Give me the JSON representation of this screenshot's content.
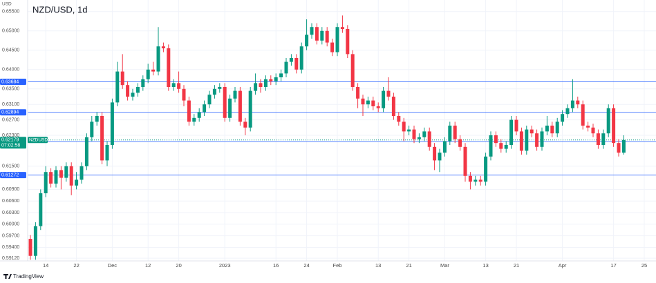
{
  "chart_data": {
    "type": "candlestick",
    "title": "NZD/USD, 1d",
    "y_axis_label": "USD",
    "symbol": "NZDUSD",
    "countdown": "07:02:58",
    "source": "TradingView",
    "grid": true,
    "up_color": "#089981",
    "down_color": "#f23645",
    "ylim": [
      0.5905,
      0.658
    ],
    "yticks": [
      {
        "value": 0.655,
        "label": "0.65500"
      },
      {
        "value": 0.65,
        "label": "0.65000"
      },
      {
        "value": 0.645,
        "label": "0.64500"
      },
      {
        "value": 0.64,
        "label": "0.64000"
      },
      {
        "value": 0.635,
        "label": "0.63500"
      },
      {
        "value": 0.631,
        "label": "0.63100"
      },
      {
        "value": 0.627,
        "label": "0.62700"
      },
      {
        "value": 0.623,
        "label": "0.62300"
      },
      {
        "value": 0.615,
        "label": "0.61500"
      },
      {
        "value": 0.609,
        "label": "0.60900"
      },
      {
        "value": 0.606,
        "label": "0.60600"
      },
      {
        "value": 0.603,
        "label": "0.60300"
      },
      {
        "value": 0.6,
        "label": "0.60000"
      },
      {
        "value": 0.597,
        "label": "0.59700"
      },
      {
        "value": 0.594,
        "label": "0.59400"
      },
      {
        "value": 0.5912,
        "label": "0.59120"
      }
    ],
    "price_lines": [
      {
        "value": 0.63684,
        "color": "#2962ff"
      },
      {
        "value": 0.62894,
        "color": "#2962ff"
      },
      {
        "value": 0.62133,
        "color": "#2962ff"
      },
      {
        "value": 0.61272,
        "color": "#2962ff"
      }
    ],
    "categories": [
      null,
      null,
      null,
      "14",
      null,
      null,
      null,
      null,
      null,
      "22",
      null,
      null,
      null,
      null,
      null,
      null,
      "Dec",
      null,
      null,
      null,
      null,
      null,
      null,
      "12",
      null,
      null,
      null,
      null,
      null,
      "20",
      null,
      null,
      null,
      null,
      null,
      null,
      null,
      null,
      "2023",
      null,
      null,
      null,
      null,
      null,
      null,
      null,
      null,
      null,
      "16",
      null,
      null,
      null,
      null,
      null,
      "24",
      null,
      null,
      null,
      null,
      null,
      "Feb",
      null,
      null,
      null,
      null,
      null,
      null,
      null,
      "13",
      null,
      null,
      null,
      null,
      null,
      "21",
      null,
      null,
      null,
      null,
      null,
      null,
      "Mar",
      null,
      null,
      null,
      null,
      null,
      null,
      null,
      "13",
      null,
      null,
      null,
      null,
      null,
      "21",
      null,
      null,
      null,
      null,
      null,
      null,
      null,
      null,
      "Apr",
      null,
      null,
      null,
      null,
      null,
      null,
      null,
      null,
      null,
      "17",
      null,
      null,
      null,
      null,
      null,
      "25"
    ],
    "open": [
      0.5962,
      0.5918,
      0.5995,
      0.608,
      0.6135,
      0.6105,
      0.614,
      0.612,
      0.615,
      0.61,
      0.6115,
      0.615,
      0.6225,
      0.6265,
      0.628,
      0.6165,
      0.6205,
      0.6315,
      0.6395,
      0.636,
      0.633,
      0.634,
      0.6355,
      0.6375,
      0.64,
      0.6395,
      0.646,
      0.6455,
      0.6355,
      0.6365,
      0.635,
      0.632,
      0.6265,
      0.6275,
      0.629,
      0.631,
      0.6335,
      0.635,
      0.6355,
      0.6275,
      0.6325,
      0.6345,
      0.6265,
      0.625,
      0.6345,
      0.6365,
      0.6355,
      0.6375,
      0.637,
      0.638,
      0.639,
      0.642,
      0.643,
      0.64,
      0.646,
      0.649,
      0.651,
      0.6475,
      0.65,
      0.647,
      0.6445,
      0.651,
      0.6505,
      0.644,
      0.6355,
      0.6325,
      0.631,
      0.632,
      0.6305,
      0.63,
      0.6345,
      0.633,
      0.628,
      0.6265,
      0.624,
      0.6245,
      0.622,
      0.6225,
      0.624,
      0.62,
      0.6165,
      0.6185,
      0.6215,
      0.6255,
      0.622,
      0.62,
      0.6125,
      0.611,
      0.6115,
      0.611,
      0.6175,
      0.623,
      0.621,
      0.6195,
      0.6205,
      0.627,
      0.624,
      0.619,
      0.6245,
      0.6235,
      0.62,
      0.624,
      0.6255,
      0.6235,
      0.6265,
      0.6285,
      0.63,
      0.632,
      0.631,
      0.6255,
      0.625,
      0.6235,
      0.6205,
      0.6235,
      0.63,
      0.621,
      0.6185,
      null,
      null,
      null,
      null
    ],
    "high": [
      0.5972,
      0.6005,
      0.609,
      0.615,
      0.6145,
      0.615,
      0.615,
      0.616,
      0.616,
      0.6135,
      0.616,
      0.6235,
      0.628,
      0.629,
      0.629,
      0.6215,
      0.6325,
      0.642,
      0.644,
      0.637,
      0.635,
      0.6365,
      0.6385,
      0.6415,
      0.642,
      0.651,
      0.647,
      0.6465,
      0.6375,
      0.6395,
      0.636,
      0.633,
      0.6285,
      0.63,
      0.632,
      0.6345,
      0.636,
      0.6365,
      0.6365,
      0.6335,
      0.6355,
      0.6355,
      0.6275,
      0.6355,
      0.639,
      0.6375,
      0.6385,
      0.6385,
      0.639,
      0.64,
      0.643,
      0.644,
      0.644,
      0.647,
      0.653,
      0.652,
      0.652,
      0.651,
      0.651,
      0.648,
      0.652,
      0.654,
      0.6515,
      0.645,
      0.6365,
      0.6335,
      0.633,
      0.633,
      0.6315,
      0.6355,
      0.638,
      0.634,
      0.629,
      0.6275,
      0.6255,
      0.6255,
      0.6235,
      0.625,
      0.625,
      0.621,
      0.6195,
      0.6225,
      0.6265,
      0.6265,
      0.623,
      0.621,
      0.6135,
      0.6125,
      0.6125,
      0.6185,
      0.624,
      0.624,
      0.622,
      0.6215,
      0.628,
      0.628,
      0.625,
      0.6255,
      0.6255,
      0.6245,
      0.625,
      0.628,
      0.6265,
      0.6275,
      0.6295,
      0.631,
      0.6375,
      0.633,
      0.632,
      0.6265,
      0.626,
      0.6245,
      0.6245,
      0.631,
      0.631,
      0.622,
      0.623,
      null,
      null,
      null,
      null
    ],
    "low": [
      0.5908,
      0.5908,
      0.5985,
      0.607,
      0.6095,
      0.6095,
      0.609,
      0.611,
      0.6075,
      0.609,
      0.6105,
      0.614,
      0.6215,
      0.6255,
      0.6155,
      0.615,
      0.6195,
      0.6305,
      0.635,
      0.632,
      0.632,
      0.633,
      0.6345,
      0.6365,
      0.6385,
      0.6385,
      0.6445,
      0.6345,
      0.6345,
      0.634,
      0.6305,
      0.6255,
      0.6255,
      0.6265,
      0.628,
      0.63,
      0.6325,
      0.634,
      0.6265,
      0.6265,
      0.6315,
      0.6255,
      0.623,
      0.624,
      0.6335,
      0.634,
      0.6345,
      0.636,
      0.636,
      0.637,
      0.638,
      0.641,
      0.639,
      0.639,
      0.645,
      0.648,
      0.6465,
      0.6465,
      0.646,
      0.6435,
      0.6435,
      0.6495,
      0.643,
      0.6345,
      0.63,
      0.628,
      0.63,
      0.6295,
      0.629,
      0.629,
      0.632,
      0.627,
      0.6255,
      0.6215,
      0.623,
      0.621,
      0.621,
      0.6215,
      0.619,
      0.614,
      0.6135,
      0.6175,
      0.6205,
      0.621,
      0.619,
      0.611,
      0.609,
      0.61,
      0.61,
      0.61,
      0.6165,
      0.62,
      0.6185,
      0.6185,
      0.6195,
      0.623,
      0.618,
      0.618,
      0.6225,
      0.619,
      0.619,
      0.623,
      0.6225,
      0.6225,
      0.6255,
      0.6275,
      0.629,
      0.63,
      0.6245,
      0.624,
      0.6225,
      0.6195,
      0.6195,
      0.6225,
      0.62,
      0.6175,
      0.618,
      null,
      null,
      null,
      null
    ],
    "close": [
      0.5918,
      0.5995,
      0.608,
      0.6135,
      0.6105,
      0.614,
      0.612,
      0.615,
      0.61,
      0.6115,
      0.615,
      0.6225,
      0.6265,
      0.628,
      0.6165,
      0.6205,
      0.6315,
      0.6395,
      0.636,
      0.633,
      0.634,
      0.6355,
      0.6375,
      0.64,
      0.6395,
      0.646,
      0.6455,
      0.6355,
      0.6365,
      0.635,
      0.632,
      0.6265,
      0.6275,
      0.629,
      0.631,
      0.6335,
      0.635,
      0.6355,
      0.6275,
      0.6325,
      0.6345,
      0.6265,
      0.625,
      0.6345,
      0.6365,
      0.6355,
      0.6375,
      0.637,
      0.638,
      0.639,
      0.642,
      0.643,
      0.64,
      0.646,
      0.649,
      0.651,
      0.6475,
      0.65,
      0.647,
      0.6445,
      0.651,
      0.6505,
      0.644,
      0.6355,
      0.6325,
      0.631,
      0.632,
      0.6305,
      0.63,
      0.6345,
      0.633,
      0.628,
      0.6265,
      0.624,
      0.6245,
      0.622,
      0.6225,
      0.624,
      0.62,
      0.6165,
      0.6185,
      0.6215,
      0.6255,
      0.622,
      0.62,
      0.6125,
      0.611,
      0.6115,
      0.611,
      0.6175,
      0.623,
      0.621,
      0.6195,
      0.6205,
      0.627,
      0.624,
      0.619,
      0.6245,
      0.6235,
      0.62,
      0.624,
      0.6255,
      0.6235,
      0.6265,
      0.6285,
      0.63,
      0.632,
      0.631,
      0.6255,
      0.625,
      0.6235,
      0.6205,
      0.6235,
      0.63,
      0.621,
      0.6185,
      0.62179,
      null,
      null,
      null,
      null
    ]
  }
}
